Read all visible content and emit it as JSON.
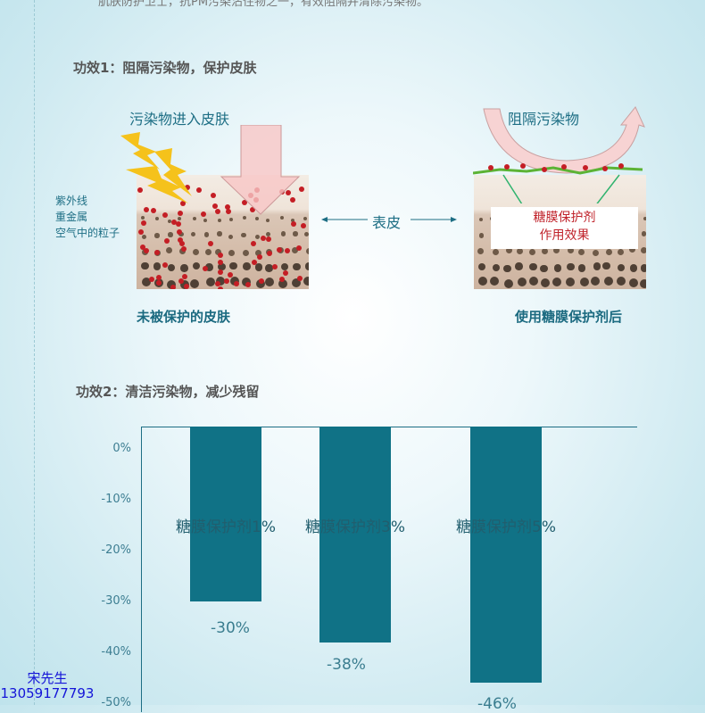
{
  "intro_text": "肌肤防护卫士，抗PM污染沾住物之一，有效阻隔并清除污染物。",
  "section1": {
    "title": "功效1：阻隔污染物，保护皮肤",
    "left_label": "污染物进入皮肤",
    "sources": [
      "紫外线",
      "重金属",
      "空气中的粒子"
    ],
    "middle_label": "表皮",
    "right_label": "阻隔污染物",
    "effect_box": [
      "糖膜保护剂",
      "作用效果"
    ],
    "left_caption": "未被保护的皮肤",
    "right_caption": "使用糖膜保护剂后"
  },
  "section2": {
    "title": "功效2：清洁污染物，减少残留"
  },
  "chart_data": {
    "type": "bar",
    "categories": [
      "糖膜保护剂1%",
      "糖膜保护剂3%",
      "糖膜保护剂5%"
    ],
    "values": [
      -30,
      -38,
      -46
    ],
    "value_labels": [
      "-30%",
      "-38%",
      "-46%"
    ],
    "ytick_labels": [
      "0%",
      "-10%",
      "-20%",
      "-30%",
      "-40%",
      "-50%"
    ],
    "ytick_values": [
      0,
      -10,
      -20,
      -30,
      -40,
      -50
    ],
    "ylim": [
      -50,
      0
    ],
    "bar_color": "#107286"
  },
  "contact": {
    "name": "宋先生",
    "phone": "13059177793"
  }
}
